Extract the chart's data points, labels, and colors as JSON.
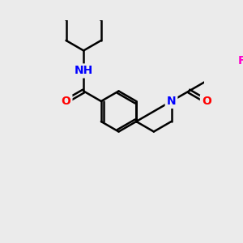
{
  "background_color": "#ebebeb",
  "bond_color": "#000000",
  "bond_width": 1.8,
  "atom_colors": {
    "N": "#0000ff",
    "O": "#ff0000",
    "F": "#ff00cc",
    "C": "#000000"
  },
  "font_size_atom": 10,
  "fig_size": [
    3.0,
    3.0
  ],
  "dpi": 100
}
